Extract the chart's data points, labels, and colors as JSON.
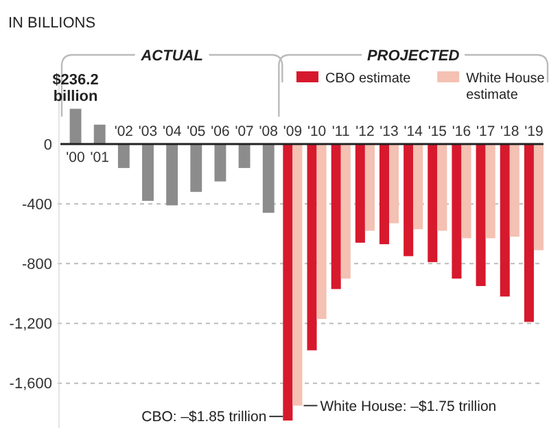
{
  "chart_data": {
    "type": "bar",
    "ylabel": "IN BILLIONS",
    "categories": [
      "'00",
      "'01",
      "'02",
      "'03",
      "'04",
      "'05",
      "'06",
      "'07",
      "'08",
      "'09",
      "'10",
      "'11",
      "'12",
      "'13",
      "'14",
      "'15",
      "'16",
      "'17",
      "'18",
      "'19"
    ],
    "series": [
      {
        "color": "#8c8c8c",
        "values": [
          236.2,
          130,
          -160,
          -380,
          -410,
          -320,
          -250,
          -160,
          -460,
          null,
          null,
          null,
          null,
          null,
          null,
          null,
          null,
          null,
          null,
          null
        ]
      },
      {
        "name": "CBO estimate",
        "color": "#d7192d",
        "values": [
          null,
          null,
          null,
          null,
          null,
          null,
          null,
          null,
          null,
          -1850,
          -1380,
          -970,
          -660,
          -670,
          -750,
          -790,
          -900,
          -950,
          -1020,
          -1190
        ]
      },
      {
        "name": "White House estimate",
        "color": "#f4c1b3",
        "values": [
          null,
          null,
          null,
          null,
          null,
          null,
          null,
          null,
          null,
          -1750,
          -1170,
          -900,
          -580,
          -530,
          -570,
          -580,
          -630,
          -630,
          -620,
          -710
        ]
      }
    ],
    "ylim": [
      -1900,
      450
    ],
    "yticks": [
      0,
      -400,
      -800,
      {
        "value": -1200,
        "label": "-1,200"
      },
      {
        "value": -1600,
        "label": "-1,600"
      }
    ],
    "grid": "y",
    "legend": "top right",
    "annotations": [
      "ACTUAL",
      "PROJECTED",
      {
        "text": "$236.2 billion",
        "x": "'00",
        "y": 236.2
      },
      {
        "text": "CBO: –$1.85 trillion",
        "x": "'09",
        "y": -1850
      },
      {
        "text": "White House: –$1.75 trillion",
        "x": "'09",
        "y": -1750
      }
    ]
  }
}
